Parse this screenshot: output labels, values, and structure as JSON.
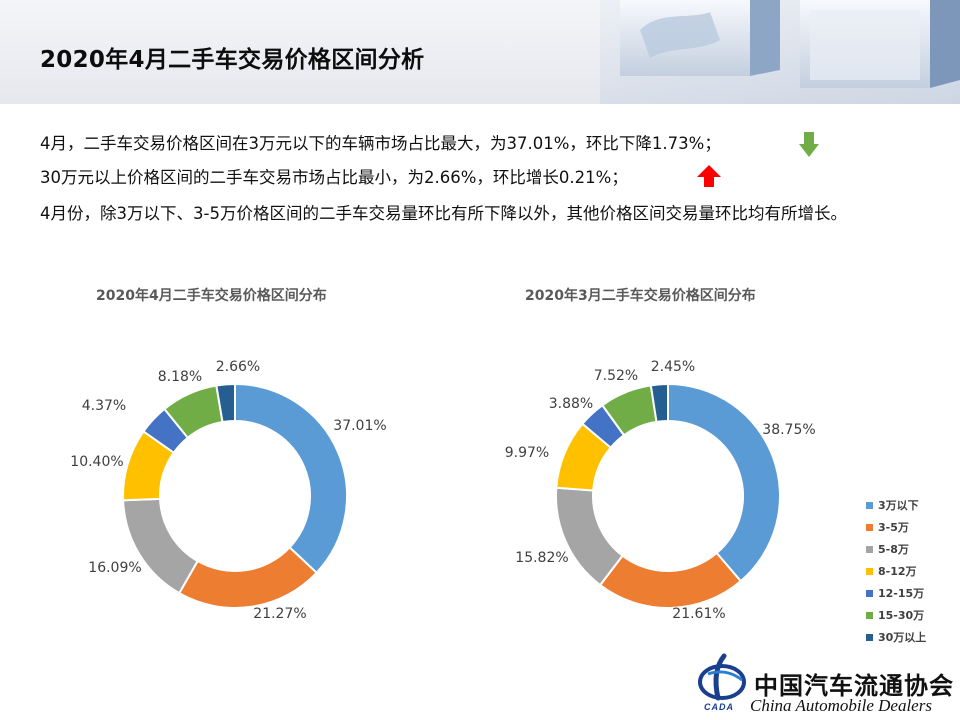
{
  "page": {
    "title": "2020年4月二手车交易价格区间分析"
  },
  "bullets": [
    {
      "text": "4月，二手车交易价格区间在3万元以下的车辆市场占比最大，为37.01%，环比下降1.73%；",
      "trend": "down",
      "trend_icon": "green-down-arrow-icon"
    },
    {
      "text": "30万元以上价格区间的二手车交易市场占比最小，为2.66%，环比增长0.21%；",
      "trend": "up",
      "trend_icon": "red-up-arrow-icon"
    },
    {
      "text": "4月份，除3万以下、3-5万价格区间的二手车交易量环比有所下降以外，其他价格区间交易量环比均有所增长。"
    }
  ],
  "colors": {
    "down_arrow": "#70ad47",
    "up_arrow": "#ff0000"
  },
  "chart_data": [
    {
      "type": "pie",
      "variant": "donut",
      "title": "2020年4月二手车交易价格区间分布",
      "categories": [
        "3万以下",
        "3-5万",
        "5-8万",
        "8-12万",
        "12-15万",
        "15-30万",
        "30万以上"
      ],
      "values": [
        37.01,
        21.27,
        16.09,
        10.4,
        4.37,
        8.18,
        2.66
      ],
      "labels": [
        "37.01%",
        "21.27%",
        "16.09%",
        "10.40%",
        "4.37%",
        "8.18%",
        "2.66%"
      ],
      "colors": [
        "#5b9bd5",
        "#ed7d31",
        "#a5a5a5",
        "#ffc000",
        "#4472c4",
        "#70ad47",
        "#255e91"
      ]
    },
    {
      "type": "pie",
      "variant": "donut",
      "title": "2020年3月二手车交易价格区间分布",
      "categories": [
        "3万以下",
        "3-5万",
        "5-8万",
        "8-12万",
        "12-15万",
        "15-30万",
        "30万以上"
      ],
      "values": [
        38.75,
        21.61,
        15.82,
        9.97,
        3.88,
        7.52,
        2.45
      ],
      "labels": [
        "38.75%",
        "21.61%",
        "15.82%",
        "9.97%",
        "3.88%",
        "7.52%",
        "2.45%"
      ],
      "colors": [
        "#5b9bd5",
        "#ed7d31",
        "#a5a5a5",
        "#ffc000",
        "#4472c4",
        "#70ad47",
        "#255e91"
      ]
    }
  ],
  "legend": {
    "placement": "right",
    "items": [
      {
        "label": "3万以下",
        "color": "#5b9bd5"
      },
      {
        "label": "3-5万",
        "color": "#ed7d31"
      },
      {
        "label": "5-8万",
        "color": "#a5a5a5"
      },
      {
        "label": "8-12万",
        "color": "#ffc000"
      },
      {
        "label": "12-15万",
        "color": "#4472c4"
      },
      {
        "label": "15-30万",
        "color": "#70ad47"
      },
      {
        "label": "30万以上",
        "color": "#255e91"
      }
    ]
  },
  "footer": {
    "org_name": "中国汽车流通协会",
    "org_name_en": "China Automobile Dealers",
    "logo_text": "CADA",
    "logo_color": "#1b3f8f"
  }
}
